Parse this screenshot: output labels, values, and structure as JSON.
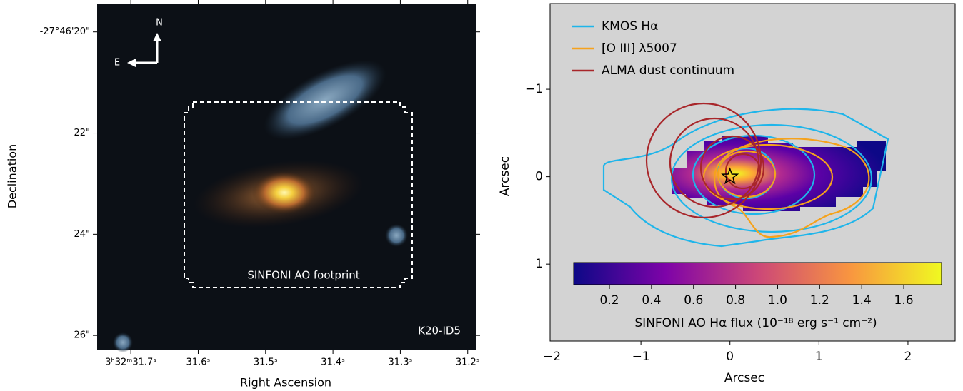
{
  "chart_data": [
    {
      "type": "image",
      "xlabel": "Right Ascension",
      "ylabel": "Declination",
      "xlim": [
        31.75,
        31.187
      ],
      "xticks": [
        {
          "value": 31.7,
          "label": "3ʰ32ᵐ31.7ˢ"
        },
        {
          "value": 31.6,
          "label": "31.6ˢ"
        },
        {
          "value": 31.5,
          "label": "31.5ˢ"
        },
        {
          "value": 31.4,
          "label": "31.4ˢ"
        },
        {
          "value": 31.3,
          "label": "31.3ˢ"
        },
        {
          "value": 31.2,
          "label": "31.2ˢ"
        }
      ],
      "ylim": [
        26.28,
        19.44
      ],
      "yticks": [
        {
          "value": 20,
          "label": "-27°46'20\""
        },
        {
          "value": 22,
          "label": "22\""
        },
        {
          "value": 24,
          "label": "24\""
        },
        {
          "value": 26,
          "label": "26\""
        }
      ],
      "annotations": {
        "north": "N",
        "east": "E",
        "footprint": "SINFONI AO footprint",
        "id": "K20-ID5"
      }
    },
    {
      "type": "contour",
      "xlabel": "Arcsec",
      "ylabel": "Arcsec",
      "xlim": [
        -2.02,
        2.53
      ],
      "xticks": [
        {
          "value": -2,
          "label": "−2"
        },
        {
          "value": -1,
          "label": "−1"
        },
        0,
        1,
        2
      ],
      "ylim": [
        1.88,
        -1.98
      ],
      "yticks": [
        {
          "value": -1,
          "label": "−1"
        },
        0,
        1
      ],
      "series": [
        {
          "name": "KMOS Hα",
          "color": "#1fb5ea"
        },
        {
          "name": "[O III] λ5007",
          "color": "#f5a21c"
        },
        {
          "name": "ALMA dust continuum",
          "color": "#a8262a"
        }
      ],
      "star": {
        "x": 0,
        "y": 0
      },
      "colorbar": {
        "label": "SINFONI AO Hα flux (10⁻¹⁸ erg s⁻¹ cm⁻²)",
        "clim": [
          0.03,
          1.78
        ],
        "ticks": [
          0.2,
          0.4,
          0.6,
          0.8,
          1.0,
          1.2,
          1.4,
          1.6
        ]
      }
    }
  ]
}
